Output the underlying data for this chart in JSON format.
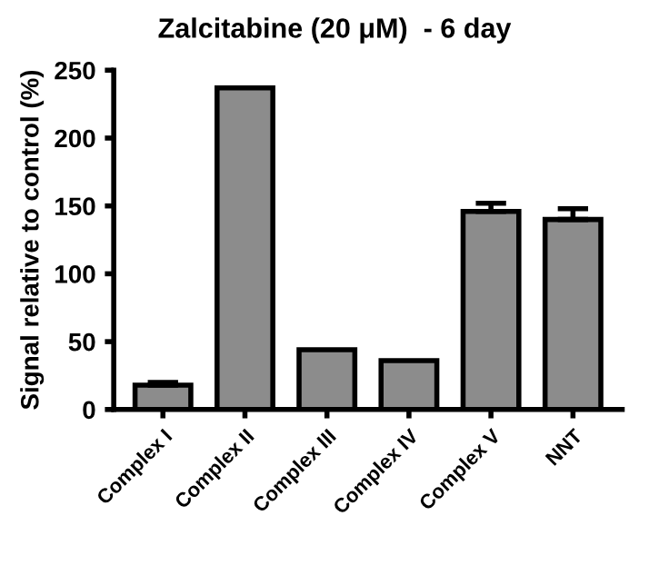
{
  "chart_data": {
    "type": "bar",
    "title": "Zalcitabine (20 μM)  - 6 day",
    "ylabel": "Signal relative to control (%)",
    "categories": [
      "Complex I",
      "Complex II",
      "Complex III",
      "Complex IV",
      "Complex V",
      "NNT"
    ],
    "values": [
      18,
      237,
      44,
      36,
      146,
      140
    ],
    "errors": [
      2,
      null,
      null,
      null,
      6,
      8
    ],
    "color": "#8c8c8c",
    "ylim": [
      0,
      250
    ],
    "yticks": [
      0,
      50,
      100,
      150,
      200,
      250
    ],
    "grid": false,
    "legend": false
  }
}
